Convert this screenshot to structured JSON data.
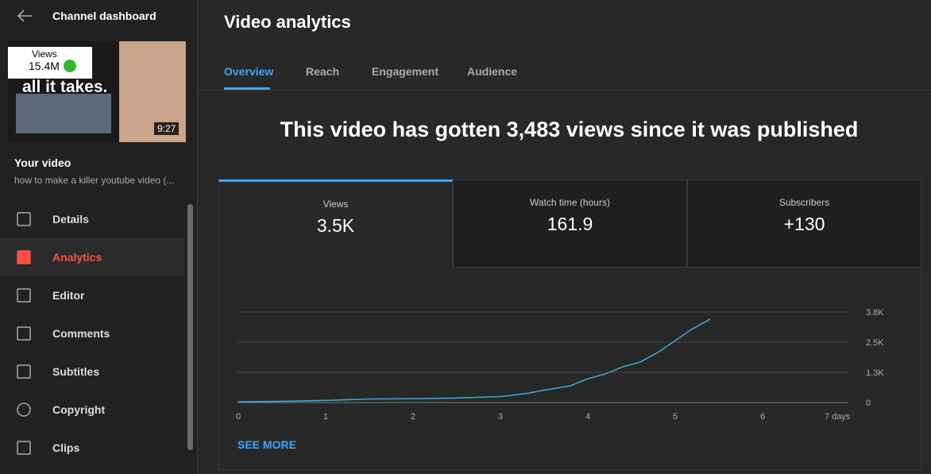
{
  "sidebar": {
    "title": "Channel dashboard",
    "thumbnail": {
      "views_label": "Views",
      "views_value": "15.4M",
      "caption": "all it takes.",
      "duration": "9:27"
    },
    "video_label": "Your video",
    "video_title": "how to make a killer youtube video (...",
    "nav": [
      "Details",
      "Analytics",
      "Editor",
      "Comments",
      "Subtitles",
      "Copyright",
      "Clips"
    ]
  },
  "header": {
    "title": "Video analytics",
    "tabs": [
      "Overview",
      "Reach",
      "Engagement",
      "Audience"
    ]
  },
  "headline": "This video has gotten 3,483 views since it was published",
  "metrics": [
    {
      "label": "Views",
      "value": "3.5K"
    },
    {
      "label": "Watch time (hours)",
      "value": "161.9"
    },
    {
      "label": "Subscribers",
      "value": "+130"
    }
  ],
  "chart_data": {
    "type": "line",
    "x": [
      0,
      0.5,
      1,
      1.25,
      1.5,
      2,
      2.5,
      3,
      3.3,
      3.5,
      3.8,
      4,
      4.2,
      4.4,
      4.6,
      4.8,
      5,
      5.2,
      5.4
    ],
    "series": [
      {
        "name": "Views",
        "color": "#3ea6d8",
        "values": [
          30,
          50,
          90,
          120,
          150,
          160,
          190,
          250,
          380,
          520,
          700,
          1000,
          1200,
          1500,
          1700,
          2100,
          2600,
          3100,
          3500
        ]
      }
    ],
    "xlim": [
      0,
      7
    ],
    "xticks": [
      0,
      1,
      2,
      3,
      4,
      5,
      6,
      {
        "value": 7,
        "label": "7 days"
      }
    ],
    "ylim": [
      0,
      3800
    ],
    "yticks": [
      0,
      {
        "value": 1267,
        "label": "1.3K"
      },
      {
        "value": 2533,
        "label": "2.5K"
      },
      {
        "value": 3800,
        "label": "3.8K"
      }
    ],
    "grid": true
  },
  "see_more": "SEE MORE"
}
